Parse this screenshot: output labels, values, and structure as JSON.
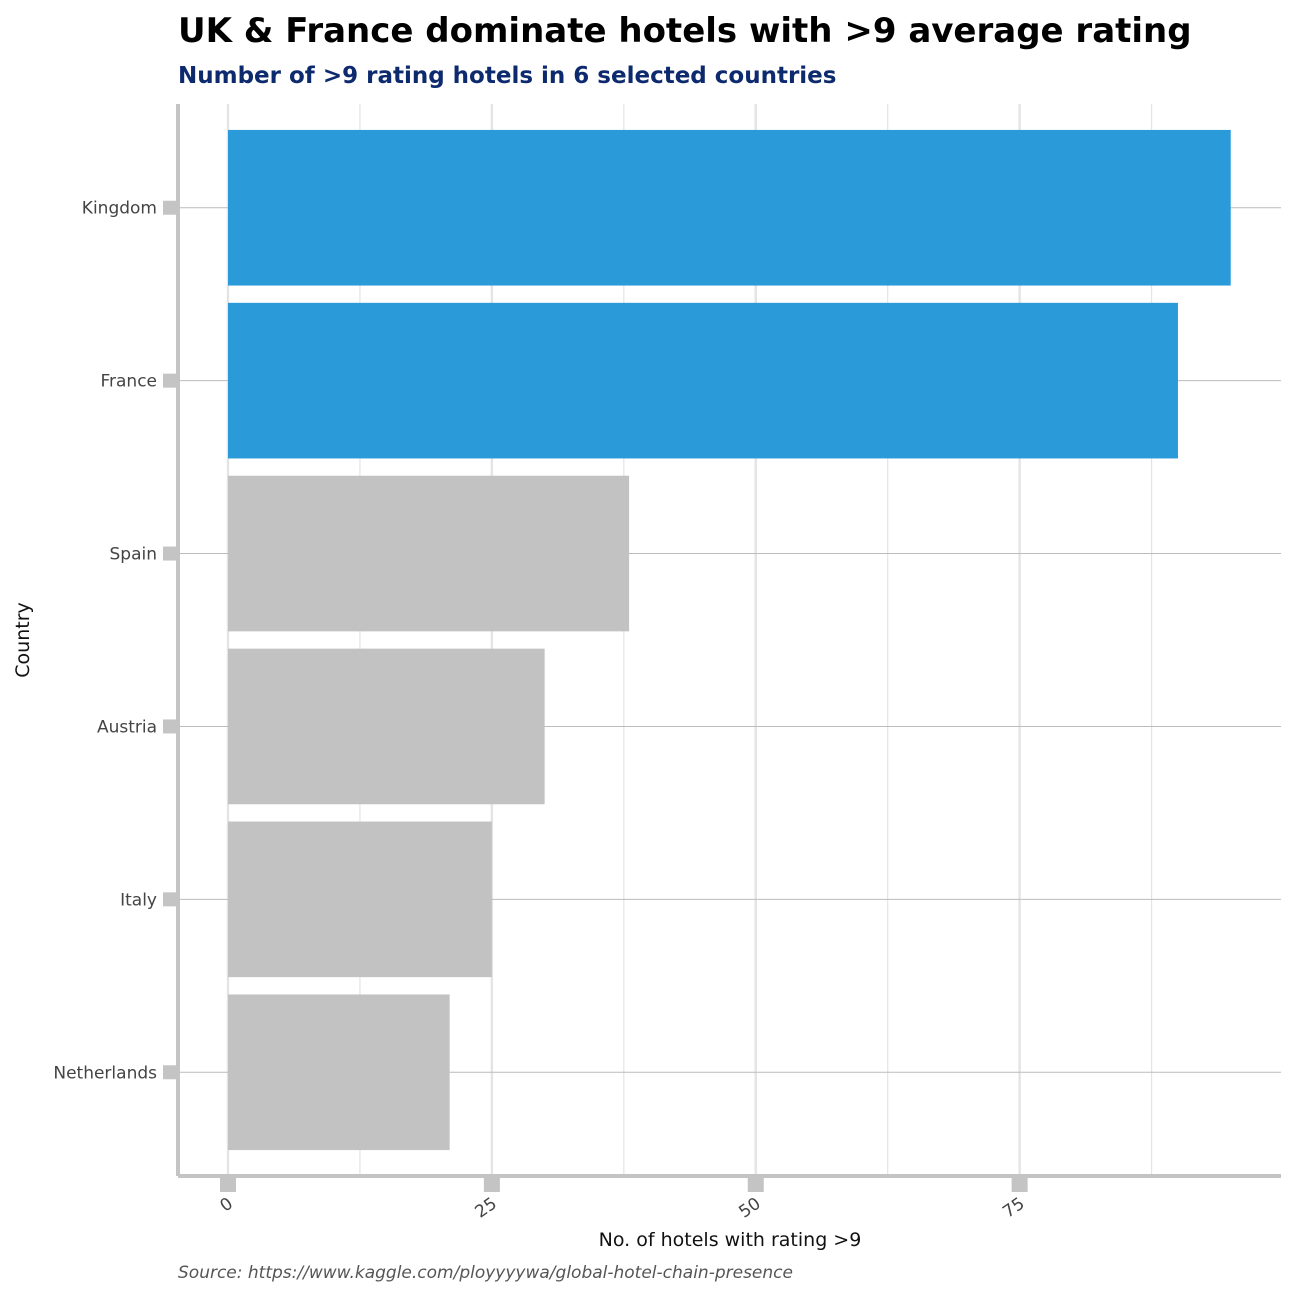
{
  "chart_data": {
    "type": "bar",
    "orientation": "horizontal",
    "title": "UK & France dominate hotels with >9 average rating",
    "subtitle": "Number of >9 rating hotels in 6 selected countries",
    "caption": "Source: https://www.kaggle.com/ployyyywa/global-hotel-chain-presence",
    "xlabel": "No. of hotels with rating >9",
    "ylabel": "Country",
    "categories": [
      "Kingdom",
      "France",
      "Spain",
      "Austria",
      "Italy",
      "Netherlands"
    ],
    "values": [
      95,
      90,
      38,
      30,
      25,
      21
    ],
    "highlight": [
      true,
      true,
      false,
      false,
      false,
      false
    ],
    "xlim": [
      -4.75,
      99.75
    ],
    "xticks": [
      0,
      25,
      50,
      75
    ],
    "xtick_labels": [
      "0",
      "25",
      "50",
      "75"
    ],
    "grid": true,
    "legend": "none",
    "colors": {
      "highlight": "#2a9ad9",
      "other": "#c2c2c2",
      "subtitle": "#0e2a6e",
      "axis": "#c4c4c4",
      "grid_major": "#bcbcbc",
      "grid_minor": "#e4e4e4"
    }
  }
}
